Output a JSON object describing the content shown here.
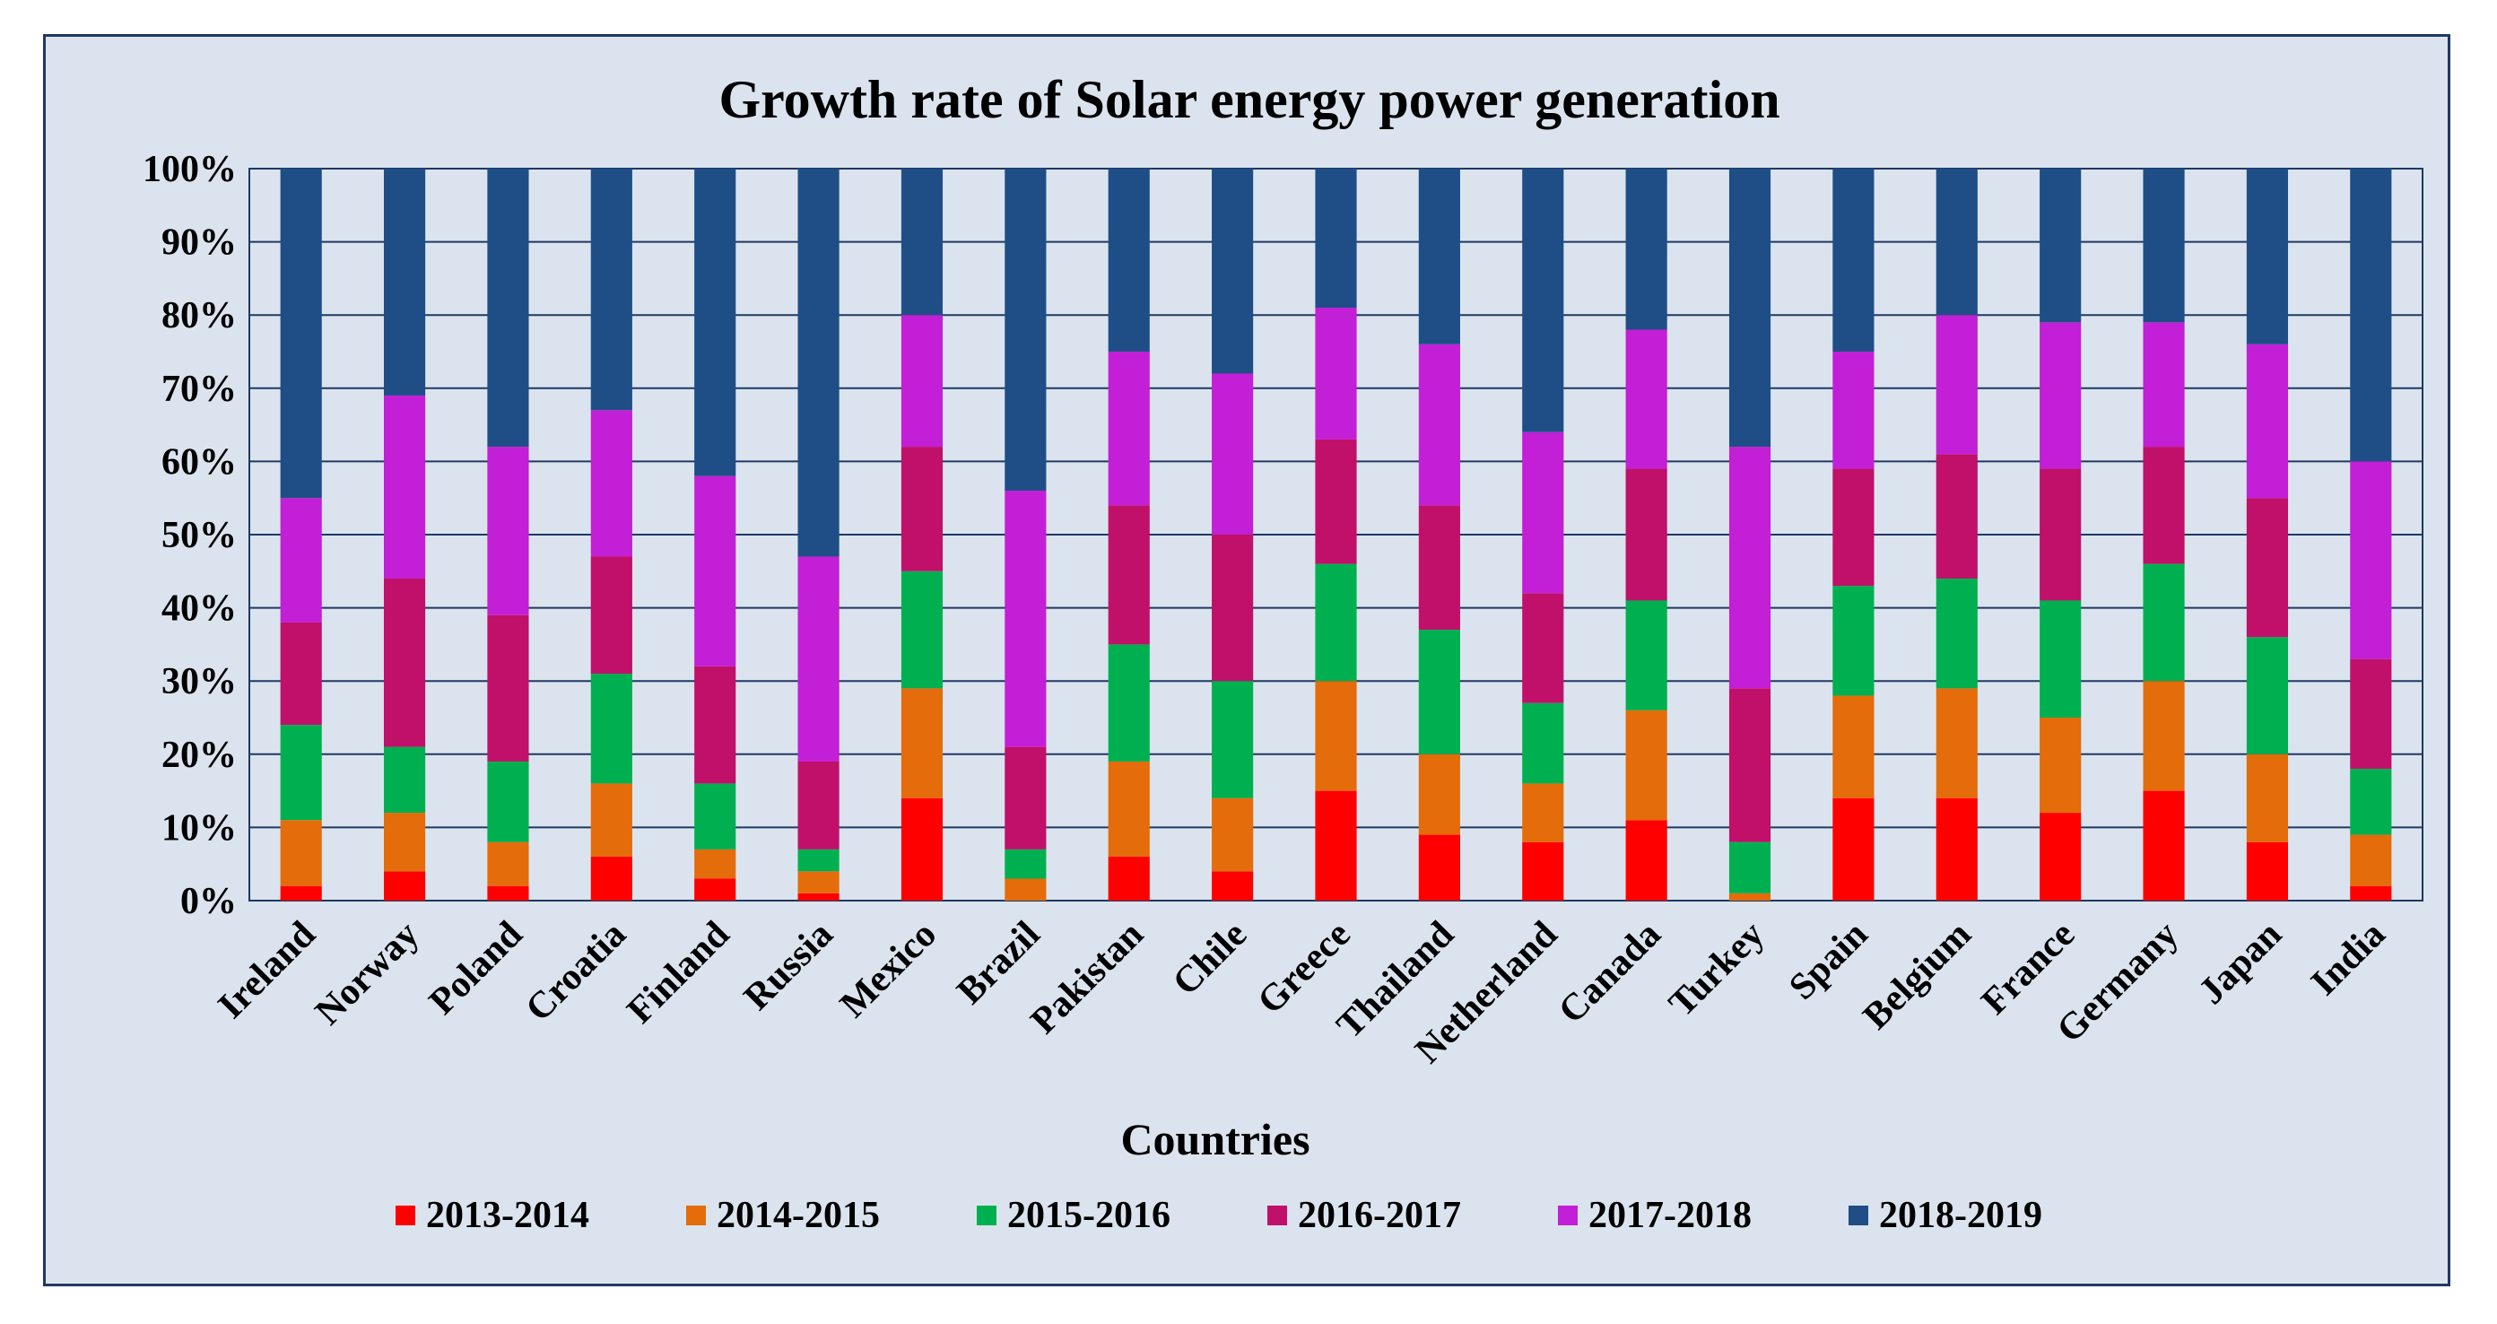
{
  "chart_data": {
    "type": "bar",
    "stacked": "percent",
    "title": "Growth rate of Solar energy power generation",
    "xlabel": "Countries",
    "ylabel": "",
    "ylim": [
      0,
      100
    ],
    "ytick_labels": [
      "0%",
      "10%",
      "20%",
      "30%",
      "40%",
      "50%",
      "60%",
      "70%",
      "80%",
      "90%",
      "100%"
    ],
    "grid": true,
    "legend_position": "bottom",
    "categories": [
      "Ireland",
      "Norway",
      "Poland",
      "Croatia",
      "Finland",
      "Russia",
      "Mexico",
      "Brazil",
      "Pakistan",
      "Chile",
      "Greece",
      "Thailand",
      "Netherland",
      "Canada",
      "Turkey",
      "Spain",
      "Belgium",
      "France",
      "Germany",
      "Japan",
      "India"
    ],
    "series": [
      {
        "name": "2013-2014",
        "color": "#ff0000",
        "values": [
          2,
          4,
          2,
          6,
          3,
          1,
          14,
          0,
          6,
          4,
          15,
          9,
          8,
          11,
          0,
          14,
          14,
          12,
          15,
          8,
          2
        ]
      },
      {
        "name": "2014-2015",
        "color": "#e46c0a",
        "values": [
          9,
          8,
          6,
          10,
          4,
          3,
          15,
          3,
          13,
          10,
          15,
          11,
          8,
          15,
          1,
          14,
          15,
          13,
          15,
          12,
          7
        ]
      },
      {
        "name": "2015-2016",
        "color": "#00b050",
        "values": [
          13,
          9,
          11,
          15,
          9,
          3,
          16,
          4,
          16,
          16,
          16,
          17,
          11,
          15,
          7,
          15,
          15,
          16,
          16,
          16,
          9
        ]
      },
      {
        "name": "2016-2017",
        "color": "#c0106a",
        "values": [
          14,
          23,
          20,
          16,
          16,
          12,
          17,
          14,
          19,
          20,
          17,
          17,
          15,
          18,
          21,
          16,
          17,
          18,
          16,
          19,
          15
        ]
      },
      {
        "name": "2017-2018",
        "color": "#c21fd6",
        "values": [
          17,
          25,
          23,
          20,
          26,
          28,
          18,
          35,
          21,
          22,
          18,
          22,
          22,
          19,
          33,
          16,
          19,
          20,
          17,
          21,
          27
        ]
      },
      {
        "name": "2018-2019",
        "color": "#1f4e86",
        "values": [
          45,
          31,
          38,
          33,
          42,
          53,
          20,
          44,
          25,
          28,
          19,
          24,
          36,
          22,
          38,
          25,
          20,
          21,
          21,
          24,
          40
        ]
      }
    ]
  }
}
